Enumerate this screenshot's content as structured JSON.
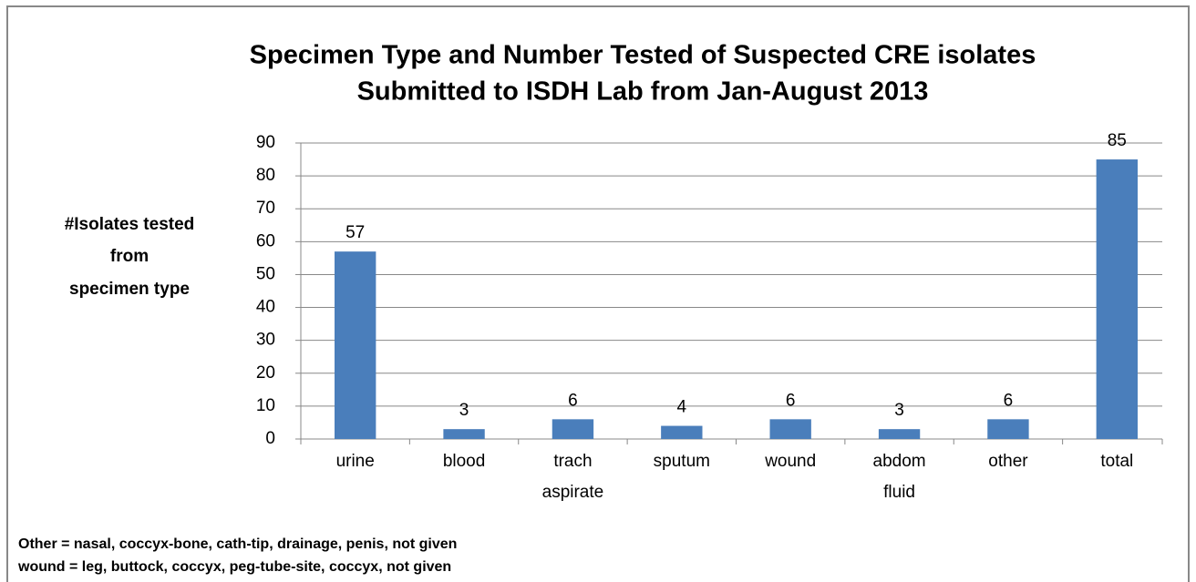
{
  "chart_data": {
    "type": "bar",
    "title": [
      "Specimen Type and Number Tested  of Suspected CRE isolates",
      "Submitted to ISDH Lab from Jan-August 2013"
    ],
    "y_label": [
      "#Isolates tested",
      "from",
      "specimen type"
    ],
    "categories": [
      "urine",
      "blood",
      "trach aspirate",
      "sputum",
      "wound",
      "abdom fluid",
      "other",
      "total"
    ],
    "values": [
      57,
      3,
      6,
      4,
      6,
      3,
      6,
      85
    ],
    "color": "#4a7ebb",
    "ylim": [
      0,
      90
    ],
    "yticks": [
      0,
      10,
      20,
      30,
      40,
      50,
      60,
      70,
      80,
      90
    ],
    "grid": true,
    "notes": [
      "Other = nasal, coccyx-bone, cath-tip, drainage, penis, not given",
      "wound = leg, buttock, coccyx, peg-tube-site, coccyx, not given"
    ]
  }
}
